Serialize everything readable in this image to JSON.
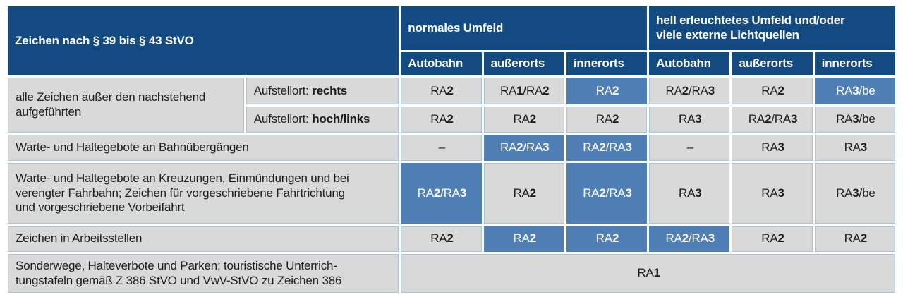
{
  "colors": {
    "header_blue": "#134b80",
    "highlight_blue": "#4f7fb5",
    "cell_gray": "#d9d9d9",
    "cell_border_blue": "#abc3d8",
    "text_dark": "#1d1d1b",
    "text_light": "#ffffff"
  },
  "header": {
    "corner_title": "Zeichen nach § 39 bis § 43 StVO",
    "group_normal": {
      "label": "normales Umfeld",
      "cols": [
        "Autobahn",
        "außerorts",
        "innerorts"
      ]
    },
    "group_bright": {
      "label_lines": [
        "hell erleuchtetes Umfeld und/oder",
        "viele externe Lichtquellen"
      ],
      "cols": [
        "Autobahn",
        "außerorts",
        "innerorts"
      ]
    }
  },
  "rows": {
    "alle_zeichen": {
      "label_lines": [
        "alle Zeichen außer den nachstehend",
        "aufgeführten"
      ],
      "rechts": {
        "aufstellort_prefix": "Aufstellort:",
        "aufstellort_value": "rechts",
        "cells": [
          "RA2",
          "RA1/RA2",
          "RA2",
          "RA2/RA3",
          "RA2",
          "RA3/be"
        ]
      },
      "hoch_links": {
        "aufstellort_prefix": "Aufstellort:",
        "aufstellort_value": "hoch/links",
        "cells": [
          "RA2",
          "RA2",
          "RA2",
          "RA3",
          "RA2/RA3",
          "RA3/be"
        ]
      }
    },
    "bahnuebergaenge": {
      "label": "Warte- und Haltegebote an Bahnübergängen",
      "cells": [
        "–",
        "RA2/RA3",
        "RA2/RA3",
        "–",
        "RA3",
        "RA3"
      ]
    },
    "kreuzungen": {
      "label_lines": [
        "Warte- und Haltegebote an Kreuzungen, Einmündungen und bei",
        "verengter Fahrbahn; Zeichen für vorgeschriebene Fahrtrichtung",
        "und vorgeschriebene Vorbeifahrt"
      ],
      "cells": [
        "RA2/RA3",
        "RA2",
        "RA2/RA3",
        "RA3",
        "RA3",
        "RA3/be"
      ]
    },
    "arbeitsstellen": {
      "label": "Zeichen in Arbeitsstellen",
      "cells": [
        "RA2",
        "RA2",
        "RA2",
        "RA2/RA3",
        "RA2",
        "RA2"
      ]
    },
    "sonderwege": {
      "label_lines": [
        "Sonderwege, Halteverbote und Parken; touristische Unterrich-",
        "tungstafeln gemäß Z 386 StVO und VwV-StVO zu Zeichen 386"
      ],
      "span_value": "RA1"
    }
  }
}
